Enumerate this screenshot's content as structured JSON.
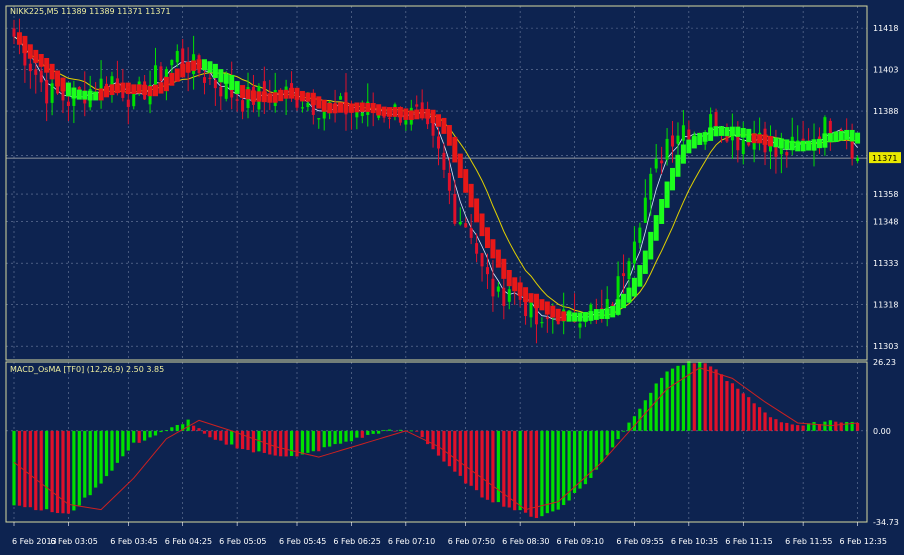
{
  "main_panel": {
    "header": "NIKK225,M5  11389 11389 11371 11371",
    "price_tag": "11371",
    "y_ticks": [
      "11418",
      "11403",
      "11388",
      "11372",
      "11358",
      "11348",
      "11333",
      "11318",
      "11303"
    ]
  },
  "macd_panel": {
    "header": "MACD_OsMA [TF0] (12,26,9)  2.50 3.85",
    "y_ticks": [
      "26.23",
      "0.00",
      "-34.73"
    ]
  },
  "x_ticks": [
    "6 Feb 2013",
    "6 Feb 03:05",
    "6 Feb 03:45",
    "6 Feb 04:25",
    "6 Feb 05:05",
    "6 Feb 05:45",
    "6 Feb 06:25",
    "6 Feb 07:10",
    "6 Feb 07:50",
    "6 Feb 08:30",
    "6 Feb 09:10",
    "6 Feb 09:55",
    "6 Feb 10:35",
    "6 Feb 11:15",
    "6 Feb 11:55",
    "6 Feb 12:35"
  ],
  "colors": {
    "background": "#0d2350",
    "grid": "#6f7f9f",
    "frame": "#d8d8a0",
    "header_text": "#f0f0a0",
    "axis_text": "#ffffff",
    "price_line": "#b8b8b8",
    "bull": "#00e000",
    "bear": "#e0102a",
    "ha_up": "#1cff1c",
    "ha_down": "#e81818",
    "ma_slow": "#e0d000",
    "ma_fast": "#d8e8ff",
    "signal": "#cc2020",
    "tag_bg": "#e8e800",
    "tag_text": "#000000"
  },
  "chart_data": [
    {
      "type": "candlestick",
      "symbol": "NIKK225",
      "timeframe": "M5",
      "last_bar": {
        "open": 11389,
        "high": 11389,
        "low": 11371,
        "close": 11371
      },
      "current_price": 11371,
      "ylim": [
        11298,
        11426
      ],
      "y_ticks": [
        11418,
        11403,
        11388,
        11372,
        11358,
        11348,
        11333,
        11318,
        11303
      ],
      "x_ticks": [
        "6 Feb 2013",
        "6 Feb 03:05",
        "6 Feb 03:45",
        "6 Feb 04:25",
        "6 Feb 05:05",
        "6 Feb 05:45",
        "6 Feb 06:25",
        "6 Feb 07:10",
        "6 Feb 07:50",
        "6 Feb 08:30",
        "6 Feb 09:10",
        "6 Feb 09:55",
        "6 Feb 10:35",
        "6 Feb 11:15",
        "6 Feb 11:55",
        "6 Feb 12:35"
      ],
      "close_path": [
        [
          0,
          11415
        ],
        [
          6,
          11395
        ],
        [
          10,
          11392
        ],
        [
          18,
          11400
        ],
        [
          22,
          11392
        ],
        [
          30,
          11408
        ],
        [
          37,
          11398
        ],
        [
          42,
          11392
        ],
        [
          49,
          11395
        ],
        [
          56,
          11390
        ],
        [
          63,
          11388
        ],
        [
          70,
          11388
        ],
        [
          74,
          11386
        ],
        [
          78,
          11372
        ],
        [
          81,
          11352
        ],
        [
          84,
          11345
        ],
        [
          86,
          11330
        ],
        [
          89,
          11320
        ],
        [
          91,
          11325
        ],
        [
          94,
          11318
        ],
        [
          97,
          11308
        ],
        [
          99,
          11316
        ],
        [
          102,
          11312
        ],
        [
          105,
          11318
        ],
        [
          108,
          11312
        ],
        [
          111,
          11325
        ],
        [
          114,
          11345
        ],
        [
          117,
          11362
        ],
        [
          120,
          11378
        ],
        [
          123,
          11383
        ],
        [
          126,
          11380
        ],
        [
          129,
          11386
        ],
        [
          133,
          11378
        ],
        [
          137,
          11381
        ],
        [
          140,
          11372
        ],
        [
          145,
          11376
        ],
        [
          149,
          11382
        ],
        [
          151,
          11385
        ],
        [
          153,
          11380
        ],
        [
          155,
          11371
        ]
      ],
      "heiken_ashi_bias": [
        [
          0,
          10,
          "down"
        ],
        [
          10,
          16,
          "up"
        ],
        [
          16,
          20,
          "down"
        ],
        [
          20,
          24,
          "down"
        ],
        [
          24,
          28,
          "down"
        ],
        [
          28,
          35,
          "down"
        ],
        [
          35,
          42,
          "up"
        ],
        [
          42,
          46,
          "down"
        ],
        [
          46,
          56,
          "down"
        ],
        [
          56,
          70,
          "down"
        ],
        [
          70,
          76,
          "down"
        ],
        [
          76,
          102,
          "down"
        ],
        [
          102,
          112,
          "up"
        ],
        [
          112,
          128,
          "up"
        ],
        [
          128,
          136,
          "up"
        ],
        [
          136,
          140,
          "down"
        ],
        [
          140,
          150,
          "up"
        ],
        [
          150,
          155,
          "up"
        ]
      ]
    },
    {
      "type": "histogram",
      "name": "MACD_OsMA [TF0] (12,26,9)",
      "values_shown": [
        2.5,
        3.85
      ],
      "ylim": [
        -34.73,
        26.23
      ],
      "y_ticks": [
        26.23,
        0.0,
        -34.73
      ],
      "histogram_path": [
        [
          0,
          -28
        ],
        [
          10,
          -32
        ],
        [
          15,
          -22
        ],
        [
          22,
          -5
        ],
        [
          28,
          0
        ],
        [
          32,
          4
        ],
        [
          36,
          -3
        ],
        [
          44,
          -8
        ],
        [
          52,
          -10
        ],
        [
          58,
          -6
        ],
        [
          68,
          0
        ],
        [
          74,
          0
        ],
        [
          80,
          -14
        ],
        [
          86,
          -25
        ],
        [
          92,
          -30
        ],
        [
          96,
          -33
        ],
        [
          100,
          -30
        ],
        [
          106,
          -18
        ],
        [
          112,
          0
        ],
        [
          116,
          12
        ],
        [
          120,
          23
        ],
        [
          124,
          26
        ],
        [
          128,
          25
        ],
        [
          134,
          14
        ],
        [
          140,
          4
        ],
        [
          145,
          2
        ],
        [
          150,
          4
        ],
        [
          155,
          3
        ]
      ],
      "signal_path": [
        [
          0,
          -12
        ],
        [
          10,
          -28
        ],
        [
          16,
          -30
        ],
        [
          22,
          -18
        ],
        [
          28,
          -3
        ],
        [
          34,
          4
        ],
        [
          40,
          0
        ],
        [
          48,
          -6
        ],
        [
          56,
          -10
        ],
        [
          64,
          -5
        ],
        [
          72,
          0
        ],
        [
          78,
          -6
        ],
        [
          86,
          -18
        ],
        [
          94,
          -30
        ],
        [
          100,
          -27
        ],
        [
          108,
          -12
        ],
        [
          114,
          2
        ],
        [
          120,
          16
        ],
        [
          126,
          24
        ],
        [
          132,
          20
        ],
        [
          138,
          11
        ],
        [
          144,
          3
        ],
        [
          150,
          2
        ],
        [
          155,
          3
        ]
      ]
    }
  ]
}
